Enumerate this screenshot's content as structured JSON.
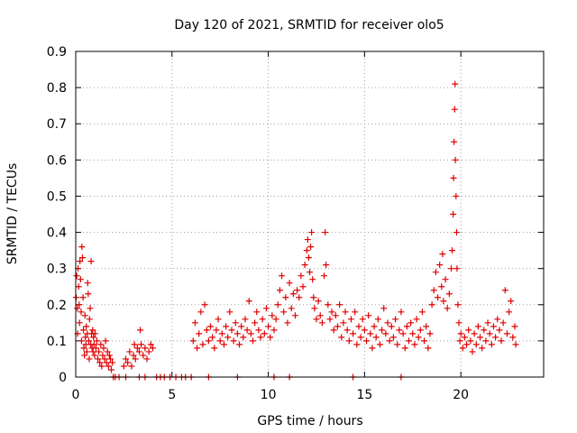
{
  "chart_data": {
    "type": "scatter",
    "title": "Day 120 of 2021, SRMTID for receiver olo5",
    "xlabel": "GPS time / hours",
    "ylabel": "SRMTID / TECUs",
    "xlim": [
      0,
      24.3
    ],
    "ylim": [
      0,
      0.9
    ],
    "xticks": [
      0,
      5,
      10,
      15,
      20
    ],
    "yticks": [
      0,
      0.1,
      0.2,
      0.3,
      0.4,
      0.5,
      0.6,
      0.7,
      0.8,
      0.9
    ],
    "xtick_labels": [
      "0",
      "5",
      "10",
      "15",
      "20"
    ],
    "ytick_labels": [
      "0",
      "0.1",
      "0.2",
      "0.3",
      "0.4",
      "0.5",
      "0.6",
      "0.7",
      "0.8",
      "0.9"
    ],
    "grid": true,
    "series": [
      {
        "name": "SRMTID",
        "color": "#e00000",
        "marker": "plus",
        "points": [
          [
            0.02,
            0.22
          ],
          [
            0.05,
            0.28
          ],
          [
            0.08,
            0.19
          ],
          [
            0.1,
            0.12
          ],
          [
            0.12,
            0.3
          ],
          [
            0.15,
            0.25
          ],
          [
            0.18,
            0.2
          ],
          [
            0.2,
            0.15
          ],
          [
            0.22,
            0.32
          ],
          [
            0.25,
            0.27
          ],
          [
            0.28,
            0.18
          ],
          [
            0.3,
            0.1
          ],
          [
            0.32,
            0.36
          ],
          [
            0.35,
            0.33
          ],
          [
            0.38,
            0.22
          ],
          [
            0.4,
            0.13
          ],
          [
            0.42,
            0.08
          ],
          [
            0.45,
            0.06
          ],
          [
            0.48,
            0.17
          ],
          [
            0.5,
            0.11
          ],
          [
            0.52,
            0.09
          ],
          [
            0.55,
            0.14
          ],
          [
            0.58,
            0.07
          ],
          [
            0.6,
            0.12
          ],
          [
            0.62,
            0.26
          ],
          [
            0.65,
            0.23
          ],
          [
            0.68,
            0.1
          ],
          [
            0.7,
            0.05
          ],
          [
            0.72,
            0.16
          ],
          [
            0.75,
            0.19
          ],
          [
            0.78,
            0.09
          ],
          [
            0.8,
            0.32
          ],
          [
            0.82,
            0.12
          ],
          [
            0.85,
            0.08
          ],
          [
            0.88,
            0.13
          ],
          [
            0.9,
            0.07
          ],
          [
            0.92,
            0.11
          ],
          [
            0.95,
            0.09
          ],
          [
            0.98,
            0.06
          ],
          [
            1.0,
            0.12
          ],
          [
            1.05,
            0.08
          ],
          [
            1.1,
            0.1
          ],
          [
            1.15,
            0.05
          ],
          [
            1.2,
            0.07
          ],
          [
            1.25,
            0.04
          ],
          [
            1.3,
            0.09
          ],
          [
            1.35,
            0.03
          ],
          [
            1.4,
            0.06
          ],
          [
            1.45,
            0.08
          ],
          [
            1.5,
            0.05
          ],
          [
            1.55,
            0.1
          ],
          [
            1.6,
            0.04
          ],
          [
            1.65,
            0.07
          ],
          [
            1.7,
            0.03
          ],
          [
            1.75,
            0.06
          ],
          [
            1.8,
            0.05
          ],
          [
            1.85,
            0.02
          ],
          [
            1.9,
            0.04
          ],
          [
            2.5,
            0.03
          ],
          [
            2.6,
            0.05
          ],
          [
            2.7,
            0.04
          ],
          [
            2.8,
            0.07
          ],
          [
            2.9,
            0.03
          ],
          [
            3.0,
            0.06
          ],
          [
            3.05,
            0.09
          ],
          [
            3.1,
            0.05
          ],
          [
            3.2,
            0.08
          ],
          [
            3.3,
            0.07
          ],
          [
            3.35,
            0.13
          ],
          [
            3.4,
            0.09
          ],
          [
            3.5,
            0.06
          ],
          [
            3.6,
            0.08
          ],
          [
            3.7,
            0.05
          ],
          [
            3.8,
            0.07
          ],
          [
            3.9,
            0.09
          ],
          [
            4.0,
            0.08
          ],
          [
            6.1,
            0.1
          ],
          [
            6.2,
            0.15
          ],
          [
            6.3,
            0.08
          ],
          [
            6.4,
            0.12
          ],
          [
            6.5,
            0.18
          ],
          [
            6.6,
            0.09
          ],
          [
            6.7,
            0.2
          ],
          [
            6.8,
            0.13
          ],
          [
            6.9,
            0.1
          ],
          [
            7.0,
            0.14
          ],
          [
            7.1,
            0.11
          ],
          [
            7.2,
            0.08
          ],
          [
            7.3,
            0.13
          ],
          [
            7.4,
            0.16
          ],
          [
            7.5,
            0.1
          ],
          [
            7.6,
            0.12
          ],
          [
            7.7,
            0.09
          ],
          [
            7.8,
            0.14
          ],
          [
            7.9,
            0.11
          ],
          [
            8.0,
            0.18
          ],
          [
            8.1,
            0.13
          ],
          [
            8.2,
            0.1
          ],
          [
            8.3,
            0.15
          ],
          [
            8.4,
            0.12
          ],
          [
            8.5,
            0.09
          ],
          [
            8.6,
            0.14
          ],
          [
            8.7,
            0.11
          ],
          [
            8.8,
            0.16
          ],
          [
            8.9,
            0.13
          ],
          [
            9.0,
            0.21
          ],
          [
            9.1,
            0.12
          ],
          [
            9.2,
            0.1
          ],
          [
            9.3,
            0.15
          ],
          [
            9.4,
            0.18
          ],
          [
            9.5,
            0.13
          ],
          [
            9.6,
            0.11
          ],
          [
            9.7,
            0.16
          ],
          [
            9.8,
            0.12
          ],
          [
            9.9,
            0.19
          ],
          [
            10.0,
            0.14
          ],
          [
            10.1,
            0.11
          ],
          [
            10.2,
            0.17
          ],
          [
            10.3,
            0.13
          ],
          [
            10.4,
            0.16
          ],
          [
            10.5,
            0.2
          ],
          [
            10.6,
            0.24
          ],
          [
            10.7,
            0.28
          ],
          [
            10.8,
            0.18
          ],
          [
            10.9,
            0.22
          ],
          [
            11.0,
            0.15
          ],
          [
            11.1,
            0.26
          ],
          [
            11.2,
            0.19
          ],
          [
            11.3,
            0.23
          ],
          [
            11.4,
            0.17
          ],
          [
            11.5,
            0.24
          ],
          [
            11.6,
            0.22
          ],
          [
            11.7,
            0.28
          ],
          [
            11.8,
            0.25
          ],
          [
            11.9,
            0.31
          ],
          [
            12.0,
            0.35
          ],
          [
            12.05,
            0.38
          ],
          [
            12.1,
            0.33
          ],
          [
            12.15,
            0.29
          ],
          [
            12.2,
            0.36
          ],
          [
            12.25,
            0.4
          ],
          [
            12.3,
            0.27
          ],
          [
            12.35,
            0.22
          ],
          [
            12.4,
            0.19
          ],
          [
            12.5,
            0.16
          ],
          [
            12.6,
            0.21
          ],
          [
            12.7,
            0.17
          ],
          [
            12.8,
            0.15
          ],
          [
            12.9,
            0.28
          ],
          [
            12.95,
            0.4
          ],
          [
            13.0,
            0.31
          ],
          [
            13.1,
            0.2
          ],
          [
            13.2,
            0.16
          ],
          [
            13.3,
            0.18
          ],
          [
            13.4,
            0.13
          ],
          [
            13.5,
            0.17
          ],
          [
            13.6,
            0.14
          ],
          [
            13.7,
            0.2
          ],
          [
            13.8,
            0.11
          ],
          [
            13.9,
            0.15
          ],
          [
            14.0,
            0.18
          ],
          [
            14.1,
            0.13
          ],
          [
            14.2,
            0.1
          ],
          [
            14.3,
            0.16
          ],
          [
            14.4,
            0.12
          ],
          [
            14.5,
            0.18
          ],
          [
            14.6,
            0.09
          ],
          [
            14.7,
            0.14
          ],
          [
            14.8,
            0.11
          ],
          [
            14.9,
            0.16
          ],
          [
            15.0,
            0.13
          ],
          [
            15.1,
            0.1
          ],
          [
            15.2,
            0.17
          ],
          [
            15.3,
            0.12
          ],
          [
            15.4,
            0.08
          ],
          [
            15.5,
            0.14
          ],
          [
            15.6,
            0.11
          ],
          [
            15.7,
            0.16
          ],
          [
            15.8,
            0.09
          ],
          [
            15.9,
            0.13
          ],
          [
            16.0,
            0.19
          ],
          [
            16.1,
            0.12
          ],
          [
            16.2,
            0.15
          ],
          [
            16.3,
            0.1
          ],
          [
            16.4,
            0.14
          ],
          [
            16.5,
            0.11
          ],
          [
            16.6,
            0.16
          ],
          [
            16.7,
            0.09
          ],
          [
            16.8,
            0.13
          ],
          [
            16.9,
            0.18
          ],
          [
            17.0,
            0.12
          ],
          [
            17.1,
            0.08
          ],
          [
            17.2,
            0.14
          ],
          [
            17.3,
            0.1
          ],
          [
            17.4,
            0.15
          ],
          [
            17.5,
            0.12
          ],
          [
            17.6,
            0.09
          ],
          [
            17.7,
            0.16
          ],
          [
            17.8,
            0.11
          ],
          [
            17.9,
            0.13
          ],
          [
            18.0,
            0.18
          ],
          [
            18.1,
            0.1
          ],
          [
            18.2,
            0.14
          ],
          [
            18.3,
            0.08
          ],
          [
            18.4,
            0.12
          ],
          [
            18.5,
            0.2
          ],
          [
            18.6,
            0.24
          ],
          [
            18.7,
            0.29
          ],
          [
            18.8,
            0.22
          ],
          [
            18.9,
            0.31
          ],
          [
            19.0,
            0.25
          ],
          [
            19.05,
            0.34
          ],
          [
            19.1,
            0.21
          ],
          [
            19.2,
            0.27
          ],
          [
            19.3,
            0.19
          ],
          [
            19.4,
            0.23
          ],
          [
            19.5,
            0.3
          ],
          [
            19.55,
            0.35
          ],
          [
            19.6,
            0.45
          ],
          [
            19.62,
            0.55
          ],
          [
            19.65,
            0.65
          ],
          [
            19.68,
            0.74
          ],
          [
            19.7,
            0.81
          ],
          [
            19.72,
            0.6
          ],
          [
            19.75,
            0.5
          ],
          [
            19.78,
            0.4
          ],
          [
            19.8,
            0.3
          ],
          [
            19.85,
            0.2
          ],
          [
            19.9,
            0.15
          ],
          [
            19.95,
            0.1
          ],
          [
            20.0,
            0.12
          ],
          [
            20.1,
            0.08
          ],
          [
            20.2,
            0.11
          ],
          [
            20.3,
            0.09
          ],
          [
            20.4,
            0.13
          ],
          [
            20.5,
            0.1
          ],
          [
            20.6,
            0.07
          ],
          [
            20.7,
            0.12
          ],
          [
            20.8,
            0.09
          ],
          [
            20.9,
            0.14
          ],
          [
            21.0,
            0.11
          ],
          [
            21.1,
            0.08
          ],
          [
            21.2,
            0.13
          ],
          [
            21.3,
            0.1
          ],
          [
            21.4,
            0.15
          ],
          [
            21.5,
            0.12
          ],
          [
            21.6,
            0.09
          ],
          [
            21.7,
            0.14
          ],
          [
            21.8,
            0.11
          ],
          [
            21.9,
            0.16
          ],
          [
            22.0,
            0.13
          ],
          [
            22.1,
            0.1
          ],
          [
            22.2,
            0.15
          ],
          [
            22.3,
            0.24
          ],
          [
            22.4,
            0.12
          ],
          [
            22.5,
            0.18
          ],
          [
            22.6,
            0.21
          ],
          [
            22.7,
            0.11
          ],
          [
            22.8,
            0.14
          ],
          [
            22.85,
            0.09
          ],
          [
            1.95,
            0.0
          ],
          [
            2.05,
            0.0
          ],
          [
            2.25,
            0.0
          ],
          [
            2.6,
            0.0
          ],
          [
            3.3,
            0.0
          ],
          [
            3.6,
            0.0
          ],
          [
            4.2,
            0.0
          ],
          [
            4.4,
            0.0
          ],
          [
            4.6,
            0.0
          ],
          [
            4.9,
            0.0
          ],
          [
            5.2,
            0.0
          ],
          [
            5.5,
            0.0
          ],
          [
            5.7,
            0.0
          ],
          [
            6.0,
            0.0
          ],
          [
            6.9,
            0.0
          ],
          [
            8.4,
            0.0
          ],
          [
            10.3,
            0.0
          ],
          [
            11.1,
            0.0
          ],
          [
            14.4,
            0.0
          ],
          [
            16.9,
            0.0
          ]
        ]
      }
    ]
  }
}
